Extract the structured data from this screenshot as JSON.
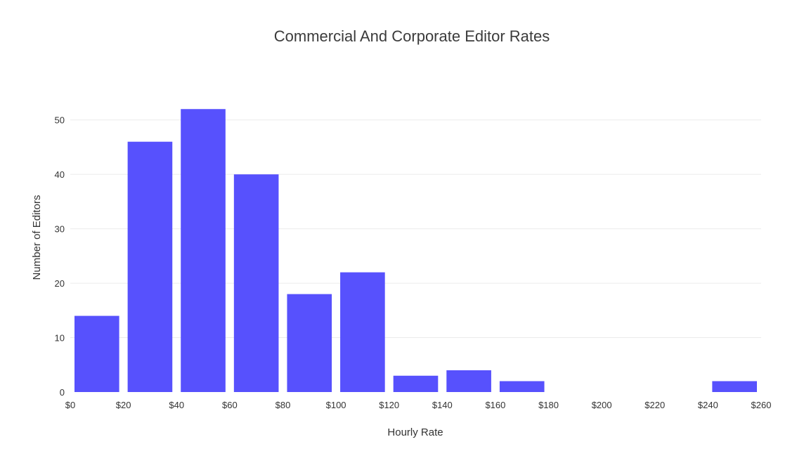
{
  "chart_data": {
    "type": "bar",
    "title": "Commercial And Corporate Editor Rates",
    "xlabel": "Hourly Rate",
    "ylabel": "Number of Editors",
    "xlim": [
      0,
      260
    ],
    "ylim": [
      0,
      55
    ],
    "bin_width": 20,
    "x_ticks": [
      0,
      20,
      40,
      60,
      80,
      100,
      120,
      140,
      160,
      180,
      200,
      220,
      240,
      260
    ],
    "x_tick_labels": [
      "$0",
      "$20",
      "$40",
      "$60",
      "$80",
      "$100",
      "$120",
      "$140",
      "$160",
      "$180",
      "$200",
      "$220",
      "$240",
      "$260"
    ],
    "y_ticks": [
      0,
      10,
      20,
      30,
      40,
      50
    ],
    "y_tick_labels": [
      "0",
      "10",
      "20",
      "30",
      "40",
      "50"
    ],
    "bars": [
      {
        "x0": 0,
        "x1": 20,
        "value": 14
      },
      {
        "x0": 20,
        "x1": 40,
        "value": 46
      },
      {
        "x0": 40,
        "x1": 60,
        "value": 52
      },
      {
        "x0": 60,
        "x1": 80,
        "value": 40
      },
      {
        "x0": 80,
        "x1": 100,
        "value": 18
      },
      {
        "x0": 100,
        "x1": 120,
        "value": 22
      },
      {
        "x0": 120,
        "x1": 140,
        "value": 3
      },
      {
        "x0": 140,
        "x1": 160,
        "value": 4
      },
      {
        "x0": 160,
        "x1": 180,
        "value": 2
      },
      {
        "x0": 180,
        "x1": 200,
        "value": 0
      },
      {
        "x0": 200,
        "x1": 220,
        "value": 0
      },
      {
        "x0": 220,
        "x1": 240,
        "value": 0
      },
      {
        "x0": 240,
        "x1": 260,
        "value": 2
      }
    ],
    "grid": true,
    "legend": "none",
    "bar_color": "#5751fd"
  }
}
